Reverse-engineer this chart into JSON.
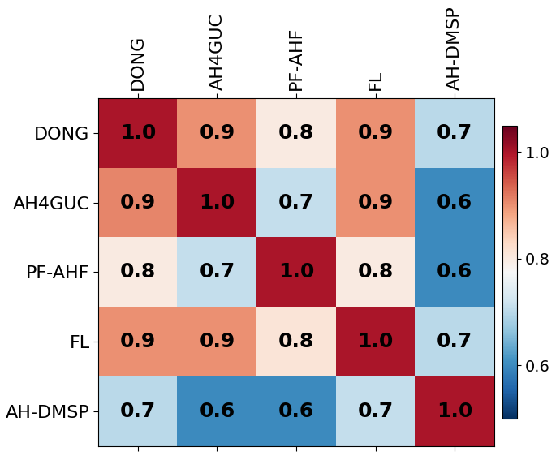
{
  "labels": [
    "DONG",
    "AH4GUC",
    "PF-AHF",
    "FL",
    "AH-DMSP"
  ],
  "matrix": [
    [
      1.0,
      0.9,
      0.8,
      0.9,
      0.7
    ],
    [
      0.91,
      1.0,
      0.71,
      0.9,
      0.6
    ],
    [
      0.8,
      0.71,
      1.0,
      0.8,
      0.6
    ],
    [
      0.9,
      0.9,
      0.81,
      1.0,
      0.7
    ],
    [
      0.7,
      0.6,
      0.6,
      0.71,
      1.0
    ]
  ],
  "cell_labels": [
    [
      "1.0",
      "0.9",
      "0.8",
      "0.9",
      "0.7"
    ],
    [
      "0.9",
      "1.0",
      "0.7",
      "0.9",
      "0.6"
    ],
    [
      "0.8",
      "0.7",
      "1.0",
      "0.8",
      "0.6"
    ],
    [
      "0.9",
      "0.9",
      "0.8",
      "1.0",
      "0.7"
    ],
    [
      "0.7",
      "0.6",
      "0.6",
      "0.7",
      "1.0"
    ]
  ],
  "vmin": 0.5,
  "vmax": 1.05,
  "cmap": "RdBu_r",
  "colorbar_ticks": [
    0.6,
    0.8,
    1.0
  ],
  "figsize": [
    6.85,
    5.62
  ],
  "dpi": 100,
  "cell_fontsize": 18,
  "tick_fontsize": 16,
  "colorbar_fontsize": 14
}
